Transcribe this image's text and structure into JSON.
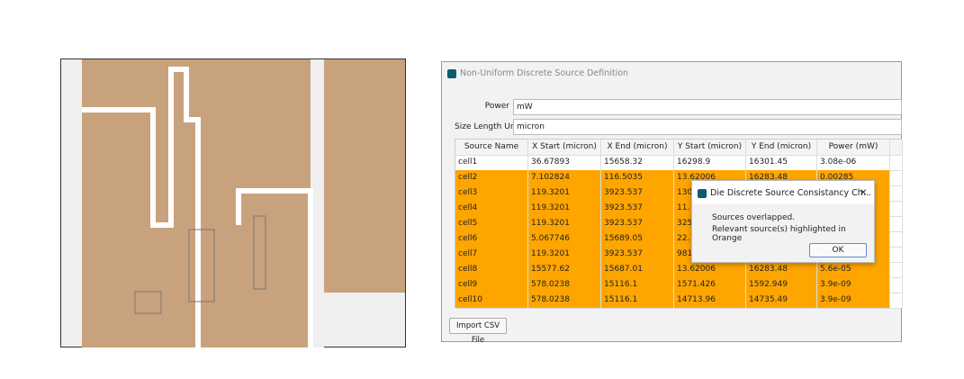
{
  "window": {
    "title": "Non-Uniform Discrete Source Definition"
  },
  "form": {
    "power": {
      "label": "Power",
      "value": "mW"
    },
    "size_unit": {
      "label": "Size Length Unit",
      "value": "micron"
    }
  },
  "table": {
    "highlight_color": "#ffa500",
    "headers": [
      "Source Name",
      "X Start (micron)",
      "X End (micron)",
      "Y Start (micron)",
      "Y End (micron)",
      "Power (mW)"
    ],
    "rows": [
      {
        "highlighted": false,
        "cells": [
          "cell1",
          "36.67893",
          "15658.32",
          "16298.9",
          "16301.45",
          "3.08e-06"
        ]
      },
      {
        "highlighted": true,
        "cells": [
          "cell2",
          "7.102824",
          "116.5035",
          "13.62006",
          "16283.48",
          "0.00285"
        ]
      },
      {
        "highlighted": true,
        "cells": [
          "cell3",
          "119.3201",
          "3923.537",
          "130",
          null,
          null
        ]
      },
      {
        "highlighted": true,
        "cells": [
          "cell4",
          "119.3201",
          "3923.537",
          "11.",
          null,
          null
        ]
      },
      {
        "highlighted": true,
        "cells": [
          "cell5",
          "119.3201",
          "3923.537",
          "325",
          null,
          null
        ]
      },
      {
        "highlighted": true,
        "cells": [
          "cell6",
          "5.067746",
          "15689.05",
          "22.",
          null,
          null
        ]
      },
      {
        "highlighted": true,
        "cells": [
          "cell7",
          "119.3201",
          "3923.537",
          "981",
          null,
          null
        ]
      },
      {
        "highlighted": true,
        "cells": [
          "cell8",
          "15577.62",
          "15687.01",
          "13.62006",
          "16283.48",
          "5.6e-05"
        ]
      },
      {
        "highlighted": true,
        "cells": [
          "cell9",
          "578.0238",
          "15116.1",
          "1571.426",
          "1592.949",
          "3.9e-09"
        ]
      },
      {
        "highlighted": true,
        "cells": [
          "cell10",
          "578.0238",
          "15116.1",
          "14713.96",
          "14735.49",
          "3.9e-09"
        ]
      }
    ]
  },
  "import_button": "Import CSV File",
  "dialog": {
    "title": "Die Discrete Source Consistancy Ch...",
    "close": "✕",
    "messages": [
      "Sources overlapped.",
      "Relevant source(s) highlighted in Orange"
    ],
    "ok": "OK"
  }
}
